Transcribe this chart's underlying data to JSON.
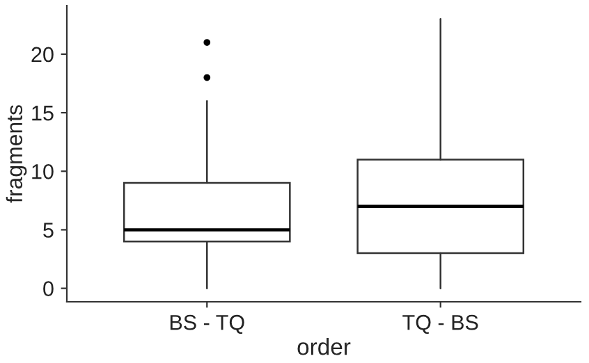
{
  "chart_data": {
    "type": "box",
    "xlabel": "order",
    "ylabel": "fragments",
    "categories": [
      "BS - TQ",
      "TQ - BS"
    ],
    "boxes": [
      {
        "low": 0,
        "q1": 4,
        "median": 5,
        "q3": 9,
        "high": 16,
        "outliers": [
          18,
          21
        ]
      },
      {
        "low": 0,
        "q1": 3,
        "median": 7,
        "q3": 11,
        "high": 23
      }
    ],
    "ylim": [
      -1.15,
      24.15
    ],
    "yticks": [
      0,
      5,
      10,
      15,
      20
    ],
    "grid": false,
    "legend": false
  }
}
